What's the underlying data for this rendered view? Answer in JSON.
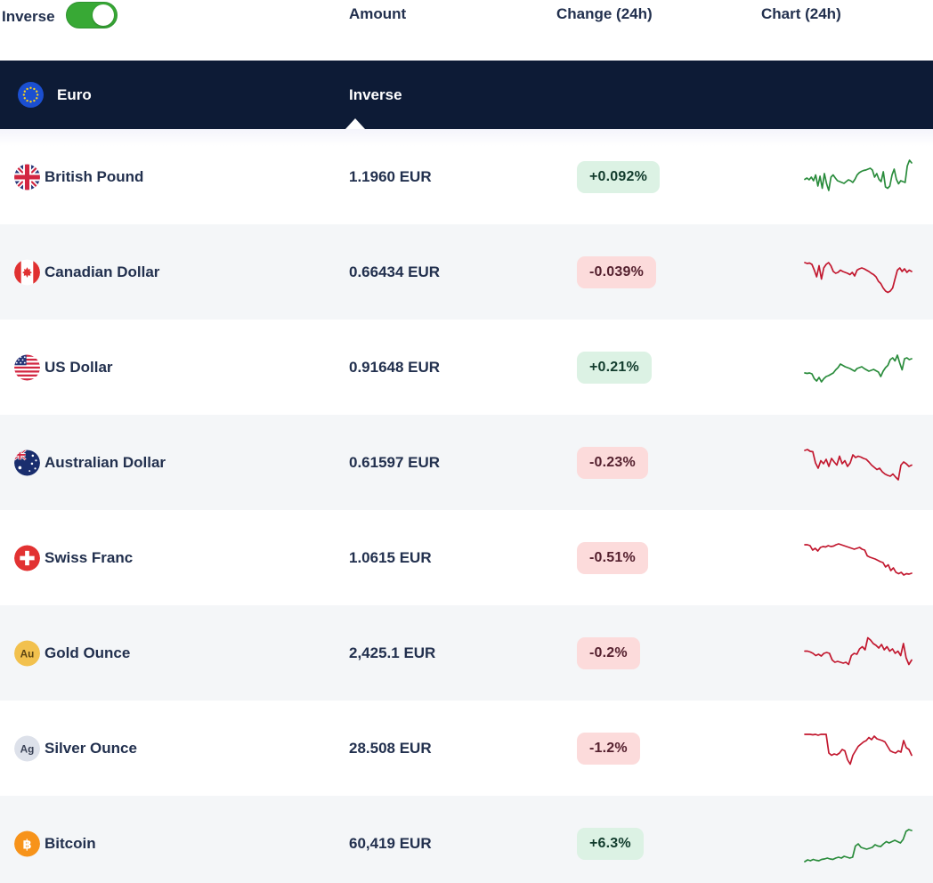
{
  "controls": {
    "inverse_label": "Inverse",
    "inverse_toggle": "on"
  },
  "columns": {
    "amount": "Amount",
    "change": "Change (24h)",
    "chart": "Chart (24h)"
  },
  "group_header": {
    "currency": "Euro",
    "mode": "Inverse"
  },
  "colors": {
    "header_navy": "#0d1b36",
    "text_navy": "#22304e",
    "row_alt": "#f4f6f8",
    "badge_up_bg": "#dcf2e4",
    "badge_up_text": "#123c2d",
    "badge_down_bg": "#fcdbdb",
    "badge_down_text": "#55212f",
    "spark_up": "#2a8c3c",
    "spark_down": "#c2182f",
    "toggle_green": "#38a935",
    "eu_blue": "#1b4fd0",
    "gold": "#f2c14e",
    "silver": "#dde1ea",
    "bitcoin_orange": "#f7931a"
  },
  "rows": [
    {
      "id": "gbp",
      "name": "British Pound",
      "amount": "1.1960 EUR",
      "change": "+0.092%",
      "direction": "up",
      "spark": [
        45,
        48,
        44,
        50,
        42,
        55,
        30,
        52,
        25,
        58,
        35,
        20,
        50,
        55,
        48,
        42,
        40,
        38,
        36,
        40,
        44,
        42,
        38,
        45,
        55,
        60,
        63,
        65,
        66,
        68,
        70,
        66,
        50,
        58,
        45,
        40,
        62,
        28,
        25,
        30,
        55,
        68,
        45,
        35,
        42,
        40,
        38,
        75,
        88,
        82
      ]
    },
    {
      "id": "cad",
      "name": "Canadian Dollar",
      "amount": "0.66434 EUR",
      "change": "-0.039%",
      "direction": "down",
      "spark": [
        72,
        70,
        71,
        68,
        55,
        40,
        65,
        35,
        60,
        68,
        72,
        65,
        52,
        48,
        50,
        55,
        52,
        50,
        48,
        45,
        50,
        42,
        55,
        58,
        60,
        58,
        55,
        52,
        48,
        45,
        40,
        30,
        25,
        15,
        8,
        5,
        8,
        15,
        35,
        55,
        60,
        52,
        58,
        50,
        55,
        52
      ]
    },
    {
      "id": "usd",
      "name": "US Dollar",
      "amount": "0.91648 EUR",
      "change": "+0.21%",
      "direction": "up",
      "spark": [
        38,
        37,
        38,
        36,
        25,
        20,
        28,
        18,
        25,
        30,
        32,
        35,
        38,
        45,
        50,
        58,
        55,
        52,
        50,
        48,
        45,
        42,
        48,
        50,
        52,
        48,
        45,
        42,
        44,
        46,
        43,
        40,
        30,
        42,
        50,
        55,
        68,
        72,
        65,
        78,
        60,
        45,
        70,
        72,
        68,
        70
      ]
    },
    {
      "id": "aud",
      "name": "Australian Dollar",
      "amount": "0.61597 EUR",
      "change": "-0.23%",
      "direction": "down",
      "spark": [
        78,
        80,
        76,
        75,
        50,
        38,
        55,
        48,
        58,
        42,
        60,
        52,
        45,
        65,
        48,
        55,
        42,
        50,
        68,
        62,
        65,
        63,
        60,
        58,
        52,
        45,
        40,
        35,
        38,
        30,
        25,
        22,
        20,
        25,
        18,
        12,
        45,
        52,
        48,
        42,
        45
      ]
    },
    {
      "id": "chf",
      "name": "Swiss Franc",
      "amount": "1.0615 EUR",
      "change": "-0.51%",
      "direction": "down",
      "spark": [
        80,
        80,
        78,
        68,
        72,
        66,
        74,
        76,
        75,
        78,
        76,
        77,
        80,
        82,
        80,
        78,
        76,
        74,
        72,
        70,
        72,
        74,
        70,
        68,
        55,
        52,
        50,
        48,
        45,
        42,
        40,
        30,
        35,
        22,
        28,
        18,
        15,
        18,
        12,
        15,
        14,
        16
      ]
    },
    {
      "id": "xau",
      "name": "Gold Ounce",
      "amount": "2,425.1 EUR",
      "change": "-0.2%",
      "direction": "down",
      "spark": [
        55,
        55,
        53,
        50,
        45,
        48,
        44,
        50,
        52,
        50,
        35,
        30,
        32,
        30,
        28,
        30,
        25,
        45,
        50,
        48,
        60,
        65,
        58,
        85,
        80,
        72,
        68,
        62,
        70,
        58,
        65,
        55,
        60,
        50,
        55,
        45,
        72,
        40,
        25,
        35
      ]
    },
    {
      "id": "xag",
      "name": "Silver Ounce",
      "amount": "28.508 EUR",
      "change": "-1.2%",
      "direction": "down",
      "spark": [
        82,
        82,
        82,
        81,
        82,
        80,
        82,
        82,
        82,
        40,
        35,
        38,
        36,
        40,
        48,
        45,
        25,
        15,
        35,
        45,
        55,
        60,
        65,
        68,
        75,
        70,
        78,
        72,
        70,
        68,
        65,
        55,
        45,
        42,
        40,
        45,
        42,
        68,
        52,
        48,
        35
      ]
    },
    {
      "id": "btc",
      "name": "Bitcoin",
      "amount": "60,419 EUR",
      "change": "+6.3%",
      "direction": "up",
      "spark": [
        10,
        14,
        12,
        15,
        13,
        12,
        15,
        16,
        18,
        16,
        15,
        18,
        20,
        18,
        22,
        20,
        18,
        20,
        45,
        50,
        42,
        40,
        38,
        40,
        42,
        48,
        45,
        44,
        50,
        55,
        52,
        55,
        58,
        55,
        52,
        60,
        78,
        82,
        80
      ]
    }
  ]
}
